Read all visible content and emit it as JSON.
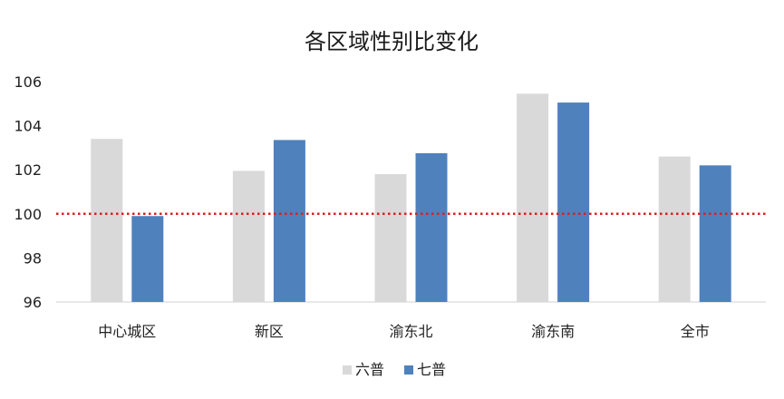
{
  "chart_data": {
    "type": "bar",
    "title": "各区域性别比变化",
    "categories": [
      "中心城区",
      "新区",
      "渝东北",
      "渝东南",
      "全市"
    ],
    "series": [
      {
        "name": "六普",
        "color": "#d9d9d9",
        "values": [
          103.4,
          101.95,
          101.8,
          105.45,
          102.6
        ]
      },
      {
        "name": "七普",
        "color": "#4f81bd",
        "values": [
          99.9,
          103.35,
          102.75,
          105.05,
          102.2
        ]
      }
    ],
    "ylim": [
      96,
      106
    ],
    "yticks": [
      96,
      98,
      100,
      102,
      104,
      106
    ],
    "reference_line": {
      "value": 100,
      "color": "#e31b1b",
      "style": "dotted"
    },
    "xlabel": "",
    "ylabel": "",
    "legend_position": "bottom",
    "grid": false
  }
}
